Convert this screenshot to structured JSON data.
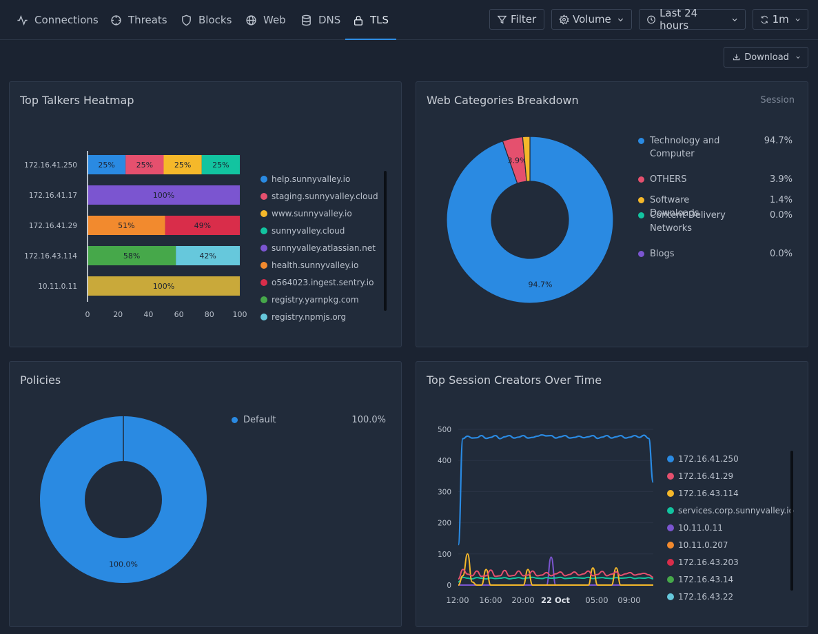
{
  "tabs": [
    {
      "label": "Connections",
      "icon": "activity-icon"
    },
    {
      "label": "Threats",
      "icon": "crosshair-icon"
    },
    {
      "label": "Blocks",
      "icon": "shield-icon"
    },
    {
      "label": "Web",
      "icon": "globe-icon"
    },
    {
      "label": "DNS",
      "icon": "database-icon"
    },
    {
      "label": "TLS",
      "icon": "lock-icon",
      "active": true
    }
  ],
  "toolbar": {
    "filter": "Filter",
    "metric": "Volume",
    "range": "Last 24 hours",
    "refresh": "1m",
    "download": "Download"
  },
  "colors": {
    "blue": "#2a8ae2",
    "pink": "#e5506e",
    "yellow": "#f5b82a",
    "teal": "#12c4a0",
    "purple": "#7b55d0",
    "orange": "#f28a2e",
    "red": "#d92d4a",
    "green": "#46a84a",
    "cyan": "#66c8dc",
    "olive": "#c9a93a"
  },
  "heatmap": {
    "title": "Top Talkers Heatmap",
    "chart_data": {
      "type": "bar",
      "orientation": "horizontal-stacked",
      "categories": [
        "172.16.41.250",
        "172.16.41.17",
        "172.16.41.29",
        "172.16.43.114",
        "10.11.0.11"
      ],
      "xlim": [
        0,
        100
      ],
      "xticks": [
        "0",
        "20",
        "40",
        "60",
        "80",
        "100"
      ],
      "rows": [
        [
          {
            "pct": 25,
            "label": "25%",
            "color": "#2a8ae2"
          },
          {
            "pct": 25,
            "label": "25%",
            "color": "#e5506e"
          },
          {
            "pct": 25,
            "label": "25%",
            "color": "#f5b82a"
          },
          {
            "pct": 25,
            "label": "25%",
            "color": "#12c4a0"
          }
        ],
        [
          {
            "pct": 100,
            "label": "100%",
            "color": "#7b55d0"
          }
        ],
        [
          {
            "pct": 51,
            "label": "51%",
            "color": "#f28a2e"
          },
          {
            "pct": 49,
            "label": "49%",
            "color": "#d92d4a"
          }
        ],
        [
          {
            "pct": 58,
            "label": "58%",
            "color": "#46a84a"
          },
          {
            "pct": 42,
            "label": "42%",
            "color": "#66c8dc"
          }
        ],
        [
          {
            "pct": 100,
            "label": "100%",
            "color": "#c9a93a"
          }
        ]
      ],
      "legend": [
        {
          "name": "help.sunnyvalley.io",
          "color": "#2a8ae2"
        },
        {
          "name": "staging.sunnyvalley.cloud",
          "color": "#e5506e"
        },
        {
          "name": "www.sunnyvalley.io",
          "color": "#f5b82a"
        },
        {
          "name": "sunnyvalley.cloud",
          "color": "#12c4a0"
        },
        {
          "name": "sunnyvalley.atlassian.net",
          "color": "#7b55d0"
        },
        {
          "name": "health.sunnyvalley.io",
          "color": "#f28a2e"
        },
        {
          "name": "o564023.ingest.sentry.io",
          "color": "#d92d4a"
        },
        {
          "name": "registry.yarnpkg.com",
          "color": "#46a84a"
        },
        {
          "name": "registry.npmjs.org",
          "color": "#66c8dc"
        }
      ]
    }
  },
  "webcat": {
    "title": "Web Categories Breakdown",
    "subtitle": "Session",
    "chart_data": {
      "type": "pie",
      "donut": true,
      "slices": [
        {
          "name": "Technology and Computer",
          "value": 94.7,
          "label": "94.7%",
          "color": "#2a8ae2"
        },
        {
          "name": "OTHERS",
          "value": 3.9,
          "label": "3.9%",
          "color": "#e5506e"
        },
        {
          "name": "Software Downloads",
          "value": 1.4,
          "label": "1.4%",
          "color": "#f5b82a"
        },
        {
          "name": "Content Delivery Networks",
          "value": 0.0,
          "label": "0.0%",
          "color": "#12c4a0"
        },
        {
          "name": "Blogs",
          "value": 0.0,
          "label": "0.0%",
          "color": "#7b55d0"
        }
      ]
    }
  },
  "policies": {
    "title": "Policies",
    "chart_data": {
      "type": "pie",
      "donut": true,
      "slices": [
        {
          "name": "Default",
          "value": 100.0,
          "label": "100.0%",
          "color": "#2a8ae2"
        }
      ]
    }
  },
  "sessions": {
    "title": "Top Session Creators Over Time",
    "chart_data": {
      "type": "line",
      "ylim": [
        0,
        500
      ],
      "yticks": [
        "500",
        "400",
        "300",
        "200",
        "100",
        "0"
      ],
      "xticks": [
        {
          "label": "12:00",
          "bold": false
        },
        {
          "label": "16:00",
          "bold": false
        },
        {
          "label": "20:00",
          "bold": false
        },
        {
          "label": "22 Oct",
          "bold": true
        },
        {
          "label": "05:00",
          "bold": false
        },
        {
          "label": "09:00",
          "bold": false
        }
      ],
      "series": [
        {
          "name": "172.16.41.250",
          "color": "#2a8ae2",
          "values": [
            130,
            470,
            478,
            472,
            473,
            480,
            471,
            474,
            480,
            470,
            476,
            480,
            472,
            475,
            480,
            472,
            474,
            478,
            482,
            479,
            480,
            472,
            476,
            480,
            472,
            474,
            478,
            473,
            476,
            480,
            471,
            475,
            480,
            472,
            476,
            480,
            472,
            475,
            480,
            474,
            481,
            471,
            330
          ]
        },
        {
          "name": "172.16.41.29",
          "color": "#e5506e",
          "values": [
            20,
            50,
            35,
            30,
            45,
            28,
            30,
            48,
            28,
            30,
            47,
            29,
            31,
            45,
            30,
            32,
            45,
            30,
            32,
            40,
            30,
            36,
            42,
            30,
            34,
            42,
            32,
            36,
            45,
            30,
            34,
            44,
            30,
            35,
            42,
            31,
            36,
            40,
            32,
            35,
            38,
            33,
            25
          ]
        },
        {
          "name": "172.16.43.114",
          "color": "#f5b82a",
          "values": [
            0,
            30,
            100,
            10,
            0,
            0,
            50,
            0,
            0,
            0,
            0,
            0,
            0,
            0,
            0,
            50,
            0,
            0,
            0,
            0,
            0,
            0,
            0,
            0,
            0,
            0,
            0,
            0,
            0,
            55,
            0,
            0,
            0,
            0,
            55,
            0,
            0,
            0,
            0,
            0,
            0,
            0,
            0
          ]
        },
        {
          "name": "services.corp.sunnyvalley.io",
          "color": "#12c4a0",
          "values": [
            10,
            25,
            22,
            20,
            24,
            22,
            20,
            23,
            21,
            22,
            24,
            20,
            22,
            24,
            21,
            23,
            25,
            22,
            21,
            24,
            22,
            23,
            25,
            21,
            22,
            24,
            23,
            22,
            25,
            21,
            23,
            24,
            22,
            21,
            24,
            22,
            23,
            25,
            21,
            23,
            22,
            24,
            20
          ]
        },
        {
          "name": "10.11.0.11",
          "color": "#7b55d0",
          "values": [
            0,
            0,
            0,
            0,
            0,
            0,
            0,
            0,
            0,
            0,
            0,
            0,
            0,
            0,
            0,
            0,
            0,
            0,
            0,
            0,
            90,
            0,
            0,
            0,
            0,
            0,
            0,
            0,
            0,
            0,
            0,
            0,
            0,
            0,
            0,
            0,
            0,
            0,
            0,
            0,
            0,
            0,
            0
          ]
        },
        {
          "name": "10.11.0.207",
          "color": "#f28a2e",
          "values": [
            0,
            0,
            0,
            0,
            0,
            0,
            0,
            0,
            0,
            0,
            0,
            0,
            0,
            0,
            0,
            0,
            0,
            0,
            0,
            0,
            0,
            0,
            0,
            0,
            0,
            0,
            0,
            0,
            0,
            0,
            0,
            0,
            0,
            0,
            0,
            0,
            0,
            0,
            0,
            0,
            0,
            0,
            0
          ]
        },
        {
          "name": "172.16.43.203",
          "color": "#d92d4a",
          "values": [
            0,
            0,
            0,
            0,
            0,
            0,
            0,
            0,
            0,
            0,
            0,
            0,
            0,
            0,
            0,
            0,
            0,
            0,
            0,
            0,
            0,
            0,
            0,
            0,
            0,
            0,
            0,
            0,
            0,
            0,
            0,
            0,
            0,
            0,
            0,
            0,
            0,
            0,
            0,
            0,
            0,
            0,
            0
          ]
        },
        {
          "name": "172.16.43.14",
          "color": "#46a84a",
          "values": [
            0,
            0,
            0,
            0,
            0,
            0,
            0,
            0,
            0,
            0,
            0,
            0,
            0,
            0,
            0,
            0,
            0,
            0,
            0,
            0,
            0,
            0,
            0,
            0,
            0,
            0,
            0,
            0,
            0,
            0,
            0,
            0,
            0,
            0,
            0,
            0,
            0,
            0,
            0,
            0,
            0,
            0,
            0
          ]
        },
        {
          "name": "172.16.43.22",
          "color": "#66c8dc",
          "values": [
            0,
            0,
            0,
            0,
            0,
            0,
            0,
            0,
            0,
            0,
            0,
            0,
            0,
            0,
            0,
            0,
            0,
            0,
            0,
            0,
            0,
            0,
            0,
            0,
            0,
            0,
            0,
            0,
            0,
            0,
            0,
            0,
            0,
            0,
            0,
            0,
            0,
            0,
            0,
            0,
            0,
            0,
            0
          ]
        }
      ]
    }
  }
}
